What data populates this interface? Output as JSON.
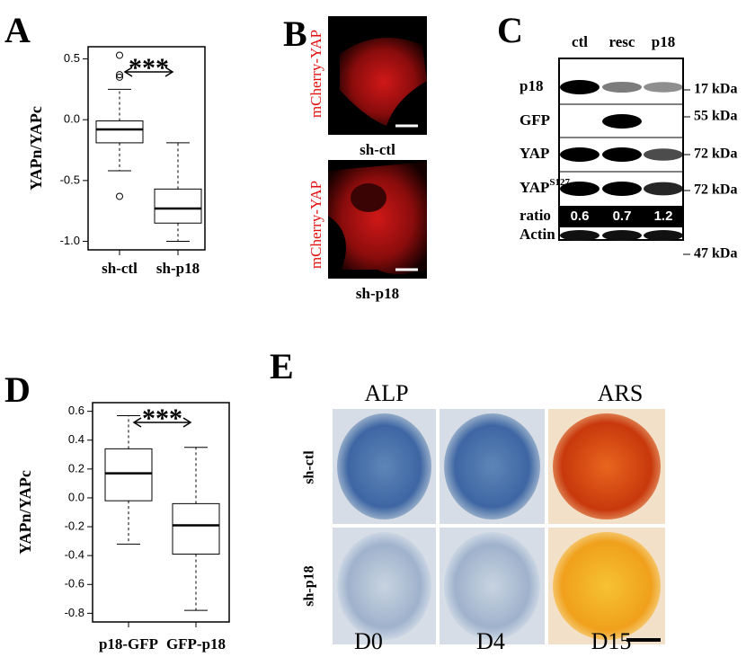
{
  "chart_data": [
    {
      "type": "box",
      "panel": "A",
      "ylabel": "YAPn/YAPc",
      "categories": [
        "sh-ctl",
        "sh-p18"
      ],
      "boxes": [
        {
          "whisker_low": -0.42,
          "q1": -0.19,
          "median": -0.08,
          "q3": -0.01,
          "whisker_high": 0.25,
          "outliers": [
            0.53,
            0.37,
            0.35,
            -0.63
          ]
        },
        {
          "whisker_low": -1.0,
          "q1": -0.85,
          "median": -0.73,
          "q3": -0.57,
          "whisker_high": -0.19,
          "outliers": []
        }
      ],
      "ylim": [
        -1.07,
        0.6
      ],
      "yticks": [
        0.5,
        {
          "value": 0,
          "label": "0.0"
        },
        -0.5,
        {
          "value": -1,
          "label": "-1.0"
        }
      ],
      "annotation": "***"
    },
    {
      "type": "box",
      "panel": "D",
      "ylabel": "YAPn/YAPc",
      "categories": [
        "p18-GFP",
        "GFP-p18"
      ],
      "boxes": [
        {
          "whisker_low": -0.32,
          "q1": -0.02,
          "median": 0.17,
          "q3": 0.34,
          "whisker_high": 0.57,
          "outliers": []
        },
        {
          "whisker_low": -0.78,
          "q1": -0.39,
          "median": -0.19,
          "q3": -0.04,
          "whisker_high": 0.35,
          "outliers": []
        }
      ],
      "ylim": [
        -0.86,
        0.66
      ],
      "yticks": [
        0.6,
        0.4,
        0.2,
        {
          "value": 0,
          "label": "0.0"
        },
        -0.2,
        -0.4,
        -0.6,
        -0.8
      ],
      "annotation": "***"
    }
  ],
  "panel_b": {
    "letter": "B",
    "stain": "mCherry-YAP",
    "images": [
      "sh-ctl",
      "sh-p18"
    ]
  },
  "panel_c": {
    "letter": "C",
    "columns": [
      "ctl",
      "resc",
      "p18"
    ],
    "rows": [
      {
        "label": "p18",
        "size": "17 kDa"
      },
      {
        "label": "GFP",
        "size": "55 kDa"
      },
      {
        "label": "YAP",
        "size": "72 kDa"
      },
      {
        "label": "YAP",
        "superscript": "S127",
        "size": "72 kDa"
      }
    ],
    "ratio_label": "ratio",
    "ratios": [
      "0.6",
      "0.7",
      "1.2"
    ],
    "actin": {
      "label": "Actin",
      "size": "47 kDa"
    }
  },
  "panel_e": {
    "letter": "E",
    "stains": [
      "ALP",
      "ARS"
    ],
    "rows": [
      "sh-ctl",
      "sh-p18"
    ],
    "days": [
      "D0",
      "D4",
      "D15"
    ]
  }
}
